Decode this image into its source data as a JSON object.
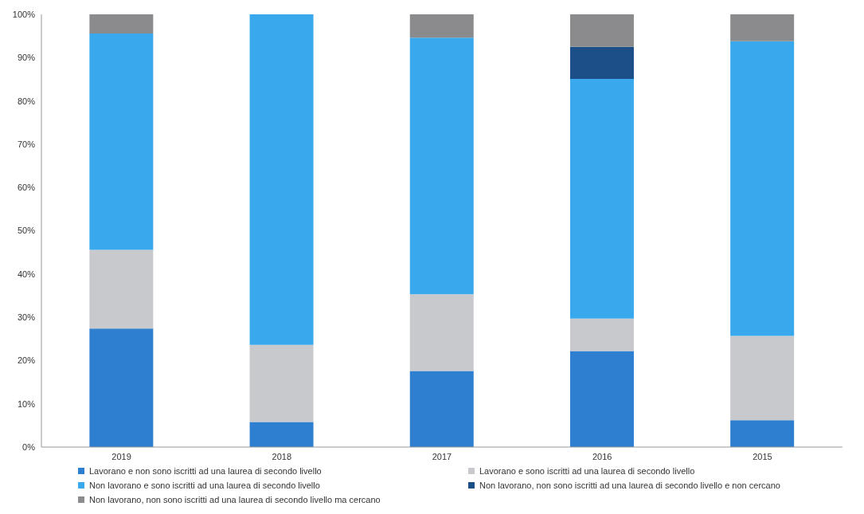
{
  "chart_data": {
    "type": "bar",
    "stacked": true,
    "categories": [
      "2019",
      "2018",
      "2017",
      "2016",
      "2015"
    ],
    "series": [
      {
        "name": "Lavorano e non sono iscritti ad una laurea di secondo livello",
        "color": "#2e7fd0",
        "values": [
          27.4,
          5.8,
          17.6,
          22.2,
          6.2
        ]
      },
      {
        "name": "Lavorano e sono iscritti ad una laurea di secondo livello",
        "color": "#c8c9cd",
        "values": [
          18.2,
          17.8,
          17.7,
          7.5,
          19.5
        ]
      },
      {
        "name": "Non lavorano e sono iscritti ad una laurea di secondo livello",
        "color": "#3aa8ec",
        "values": [
          50,
          76.4,
          59.3,
          55.4,
          68.1
        ]
      },
      {
        "name": "Non lavorano, non sono iscritti ad una laurea di secondo livello e non cercano",
        "color": "#1c4f88",
        "values": [
          0,
          0,
          0,
          7.4,
          0
        ]
      },
      {
        "name": "Non lavorano, non sono iscritti ad una laurea di secondo livello ma cercano",
        "color": "#8b8b8d",
        "values": [
          4.4,
          0,
          5.4,
          7.5,
          6.2
        ]
      }
    ],
    "ylim": [
      0,
      100
    ],
    "yticks": [
      {
        "value": 0,
        "label": "0%"
      },
      {
        "value": 10,
        "label": "10%"
      },
      {
        "value": 20,
        "label": "20%"
      },
      {
        "value": 30,
        "label": "30%"
      },
      {
        "value": 40,
        "label": "40%"
      },
      {
        "value": 50,
        "label": "50%"
      },
      {
        "value": 60,
        "label": "60%"
      },
      {
        "value": 70,
        "label": "70%"
      },
      {
        "value": 80,
        "label": "80%"
      },
      {
        "value": 90,
        "label": "90%"
      },
      {
        "value": 100,
        "label": "100%"
      }
    ],
    "legend": "bottom"
  }
}
